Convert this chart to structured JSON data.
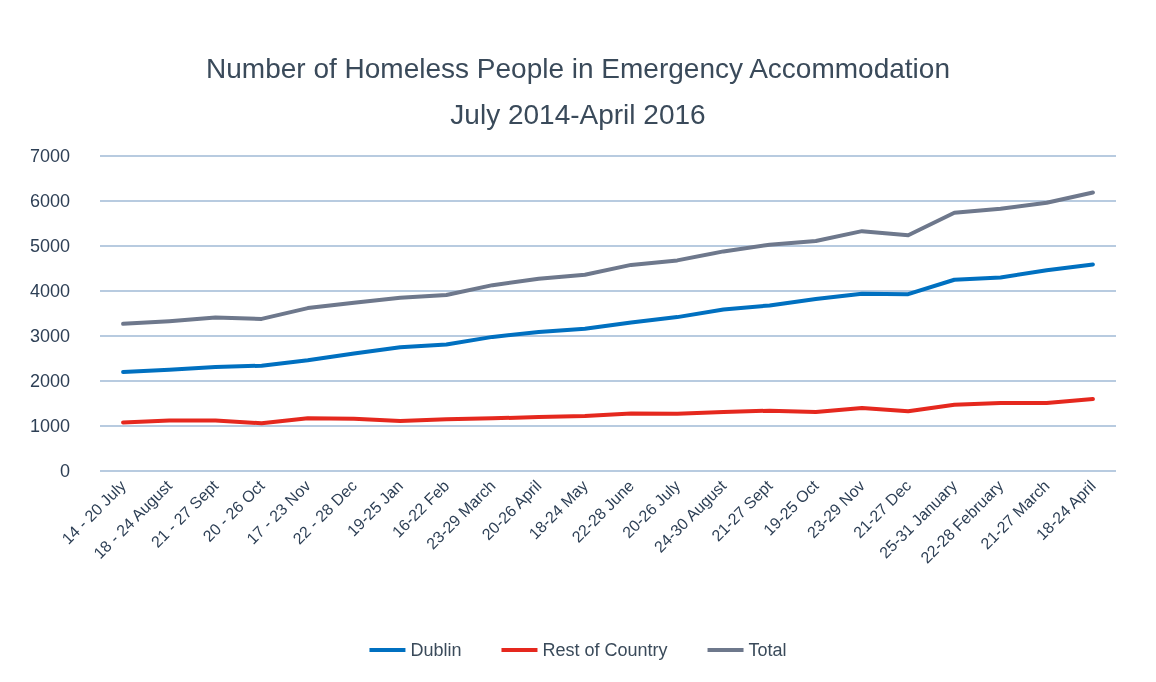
{
  "chart_data": {
    "type": "line",
    "title": "Number of Homeless People in Emergency Accommodation\nJuly 2014-April 2016",
    "categories": [
      "14 - 20 July",
      "18 - 24 August",
      "21 - 27 Sept",
      "20 - 26 Oct",
      "17 - 23 Nov",
      "22 - 28 Dec",
      "19-25 Jan",
      "16-22 Feb",
      "23-29 March",
      "20-26 April",
      "18-24 May",
      "22-28 June",
      "20-26 July",
      "24-30 August",
      "21-27 Sept",
      "19-25 Oct",
      "23-29 Nov",
      "21-27 Dec",
      "25-31 January",
      "22-28 February",
      "21-27 March",
      "18-24 April"
    ],
    "series": [
      {
        "name": "Dublin",
        "color": "#0070c0",
        "values": [
          2200,
          2250,
          2310,
          2340,
          2460,
          2610,
          2750,
          2810,
          2980,
          3090,
          3160,
          3300,
          3420,
          3590,
          3680,
          3820,
          3940,
          3930,
          4250,
          4300,
          4460,
          4590
        ]
      },
      {
        "name": "Rest of Country",
        "color": "#e5281e",
        "values": [
          1080,
          1120,
          1120,
          1060,
          1170,
          1160,
          1110,
          1150,
          1170,
          1200,
          1220,
          1280,
          1270,
          1310,
          1340,
          1310,
          1400,
          1330,
          1470,
          1510,
          1510,
          1600
        ]
      },
      {
        "name": "Total",
        "color": "#6e788c",
        "values": [
          3270,
          3330,
          3410,
          3380,
          3620,
          3740,
          3850,
          3910,
          4130,
          4270,
          4360,
          4580,
          4680,
          4880,
          5030,
          5110,
          5330,
          5240,
          5740,
          5830,
          5960,
          6190
        ]
      }
    ],
    "ylim": [
      0,
      7000
    ],
    "yticks": [
      0,
      1000,
      2000,
      3000,
      4000,
      5000,
      6000,
      7000
    ],
    "grid": "y",
    "legend": "bottom",
    "marker": "none",
    "line_style": "solid"
  }
}
